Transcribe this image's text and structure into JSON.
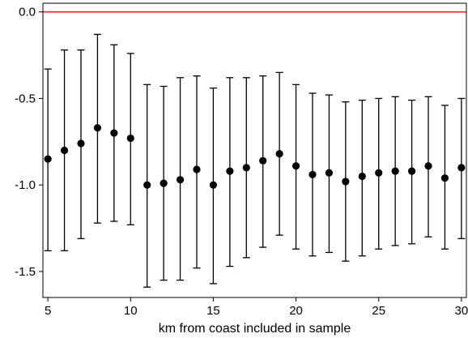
{
  "chart_data": {
    "type": "scatter",
    "title": "",
    "xlabel": "km from coast included in sample",
    "ylabel": "",
    "xlim": [
      4.7,
      30.3
    ],
    "ylim": [
      -1.65,
      0.05
    ],
    "x_ticks": [
      5,
      10,
      15,
      20,
      25,
      30
    ],
    "y_ticks": [
      0.0,
      -0.5,
      -1.0,
      -1.5
    ],
    "y_tick_labels": [
      "0.0",
      "-0.5",
      "-1.0",
      "-1.5"
    ],
    "reference_line": {
      "y": 0.0,
      "color": "#e8262a"
    },
    "grid": false,
    "legend": "none",
    "marker_color": "#000000",
    "series": [
      {
        "points": [
          {
            "x": 5,
            "y": -0.85,
            "lo": -1.38,
            "hi": -0.33
          },
          {
            "x": 6,
            "y": -0.8,
            "lo": -1.38,
            "hi": -0.22
          },
          {
            "x": 7,
            "y": -0.76,
            "lo": -1.31,
            "hi": -0.22
          },
          {
            "x": 8,
            "y": -0.67,
            "lo": -1.22,
            "hi": -0.13
          },
          {
            "x": 9,
            "y": -0.7,
            "lo": -1.21,
            "hi": -0.19
          },
          {
            "x": 10,
            "y": -0.73,
            "lo": -1.23,
            "hi": -0.24
          },
          {
            "x": 11,
            "y": -1.0,
            "lo": -1.59,
            "hi": -0.42
          },
          {
            "x": 12,
            "y": -0.99,
            "lo": -1.55,
            "hi": -0.43
          },
          {
            "x": 13,
            "y": -0.97,
            "lo": -1.55,
            "hi": -0.38
          },
          {
            "x": 14,
            "y": -0.91,
            "lo": -1.48,
            "hi": -0.37
          },
          {
            "x": 15,
            "y": -1.0,
            "lo": -1.57,
            "hi": -0.44
          },
          {
            "x": 16,
            "y": -0.92,
            "lo": -1.47,
            "hi": -0.38
          },
          {
            "x": 17,
            "y": -0.9,
            "lo": -1.42,
            "hi": -0.38
          },
          {
            "x": 18,
            "y": -0.86,
            "lo": -1.36,
            "hi": -0.37
          },
          {
            "x": 19,
            "y": -0.82,
            "lo": -1.29,
            "hi": -0.35
          },
          {
            "x": 20,
            "y": -0.89,
            "lo": -1.37,
            "hi": -0.42
          },
          {
            "x": 21,
            "y": -0.94,
            "lo": -1.41,
            "hi": -0.47
          },
          {
            "x": 22,
            "y": -0.93,
            "lo": -1.39,
            "hi": -0.48
          },
          {
            "x": 23,
            "y": -0.98,
            "lo": -1.44,
            "hi": -0.52
          },
          {
            "x": 24,
            "y": -0.95,
            "lo": -1.41,
            "hi": -0.51
          },
          {
            "x": 25,
            "y": -0.93,
            "lo": -1.37,
            "hi": -0.5
          },
          {
            "x": 26,
            "y": -0.92,
            "lo": -1.35,
            "hi": -0.49
          },
          {
            "x": 27,
            "y": -0.92,
            "lo": -1.34,
            "hi": -0.51
          },
          {
            "x": 28,
            "y": -0.89,
            "lo": -1.3,
            "hi": -0.49
          },
          {
            "x": 29,
            "y": -0.96,
            "lo": -1.37,
            "hi": -0.54
          },
          {
            "x": 30,
            "y": -0.9,
            "lo": -1.31,
            "hi": -0.5
          }
        ]
      }
    ]
  }
}
